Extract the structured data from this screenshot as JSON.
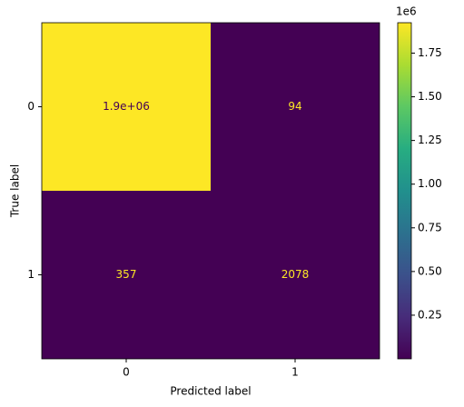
{
  "chart_data": {
    "type": "heatmap",
    "xlabel": "Predicted label",
    "ylabel": "True label",
    "x_categories": [
      "0",
      "1"
    ],
    "y_categories": [
      "0",
      "1"
    ],
    "values": [
      [
        1924000,
        94
      ],
      [
        357,
        2078
      ]
    ],
    "value_labels": [
      [
        "1.9e+06",
        "94"
      ],
      [
        "357",
        "2078"
      ]
    ],
    "colormap": "viridis",
    "clim": [
      94,
      1924000
    ],
    "colorbar_ticks": [
      {
        "value": 250000,
        "label": "0.25"
      },
      {
        "value": 500000,
        "label": "0.50"
      },
      {
        "value": 750000,
        "label": "0.75"
      },
      {
        "value": 1000000,
        "label": "1.00"
      },
      {
        "value": 1250000,
        "label": "1.25"
      },
      {
        "value": 1500000,
        "label": "1.50"
      },
      {
        "value": 1750000,
        "label": "1.75"
      }
    ],
    "colorbar_offset": "1e6"
  }
}
